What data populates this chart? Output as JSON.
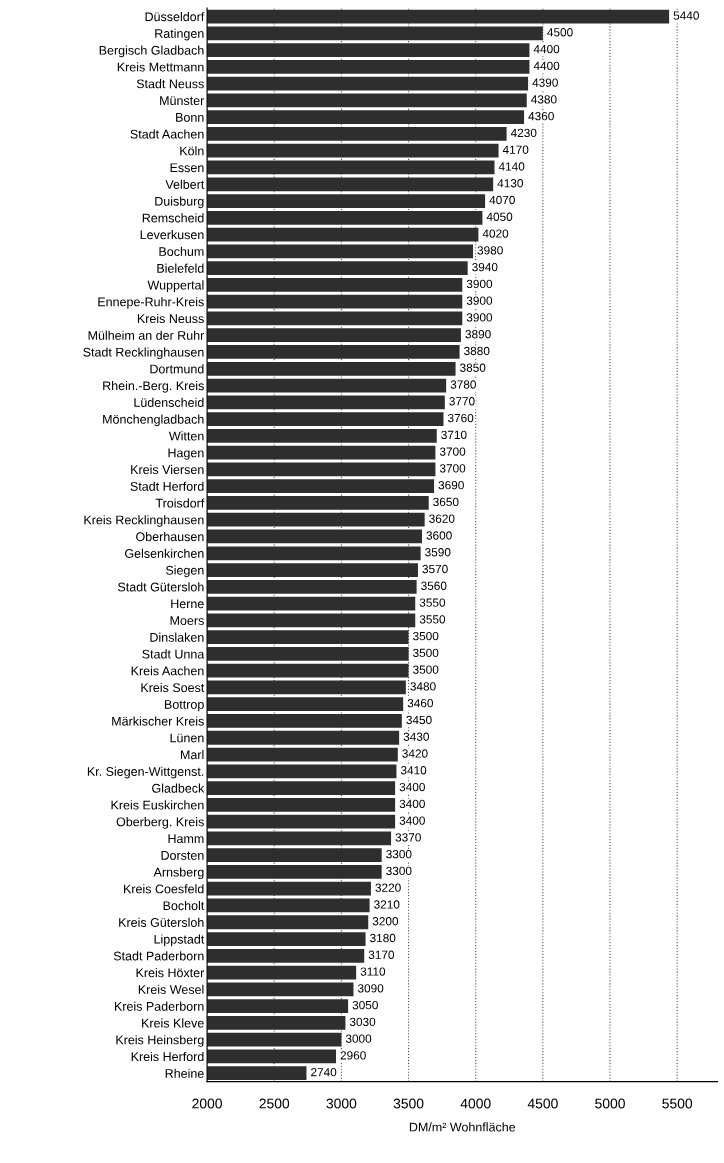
{
  "chart_data": {
    "type": "bar",
    "orientation": "horizontal",
    "xlabel": "DM/m² Wohnfläche",
    "categories": [
      "Düsseldorf",
      "Ratingen",
      "Bergisch Gladbach",
      "Kreis Mettmann",
      "Stadt Neuss",
      "Münster",
      "Bonn",
      "Stadt Aachen",
      "Köln",
      "Essen",
      "Velbert",
      "Duisburg",
      "Remscheid",
      "Leverkusen",
      "Bochum",
      "Bielefeld",
      "Wuppertal",
      "Ennepe-Ruhr-Kreis",
      "Kreis Neuss",
      "Mülheim an der Ruhr",
      "Stadt Recklinghausen",
      "Dortmund",
      "Rhein.-Berg. Kreis",
      "Lüdenscheid",
      "Mönchengladbach",
      "Witten",
      "Hagen",
      "Kreis Viersen",
      "Stadt Herford",
      "Troisdorf",
      "Kreis Recklinghausen",
      "Oberhausen",
      "Gelsenkirchen",
      "Siegen",
      "Stadt Gütersloh",
      "Herne",
      "Moers",
      "Dinslaken",
      "Stadt Unna",
      "Kreis Aachen",
      "Kreis Soest",
      "Bottrop",
      "Märkischer Kreis",
      "Lünen",
      "Marl",
      "Kr. Siegen-Wittgenst.",
      "Gladbeck",
      "Kreis Euskirchen",
      "Oberberg. Kreis",
      "Hamm",
      "Dorsten",
      "Arnsberg",
      "Kreis Coesfeld",
      "Bocholt",
      "Kreis Gütersloh",
      "Lippstadt",
      "Stadt Paderborn",
      "Kreis Höxter",
      "Kreis Wesel",
      "Kreis Paderborn",
      "Kreis Kleve",
      "Kreis Heinsberg",
      "Kreis Herford",
      "Rheine"
    ],
    "values": [
      5440,
      4500,
      4400,
      4400,
      4390,
      4380,
      4360,
      4230,
      4170,
      4140,
      4130,
      4070,
      4050,
      4020,
      3980,
      3940,
      3900,
      3900,
      3900,
      3890,
      3880,
      3850,
      3780,
      3770,
      3760,
      3710,
      3700,
      3700,
      3690,
      3650,
      3620,
      3600,
      3590,
      3570,
      3560,
      3550,
      3550,
      3500,
      3500,
      3500,
      3480,
      3460,
      3450,
      3430,
      3420,
      3410,
      3400,
      3400,
      3400,
      3370,
      3300,
      3300,
      3220,
      3210,
      3200,
      3180,
      3170,
      3110,
      3090,
      3050,
      3030,
      3000,
      2960,
      2740
    ],
    "color": "#2e2e2e",
    "data_labels": true,
    "xlim": [
      2000,
      5800
    ],
    "xticks": [
      2000,
      2500,
      3000,
      3500,
      4000,
      4500,
      5000,
      5500
    ],
    "grid": "x"
  }
}
